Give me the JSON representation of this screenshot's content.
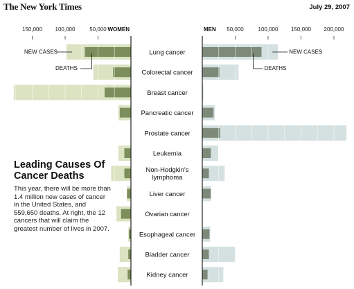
{
  "header": {
    "masthead": "The New York Times",
    "date": "July 29, 2007"
  },
  "text": {
    "headline": "Leading Causes Of Cancer Deaths",
    "blurb": "This year, there will be more than 1.4 million new cases of cancer in the United States, and 559,650 deaths. At right, the 12 cancers that will claim the greatest number of lives in 2007."
  },
  "colors": {
    "women_new_cases": "#dbe3c2",
    "women_deaths": "#7b8e5b",
    "men_new_cases": "#d4e1e0",
    "men_deaths": "#7d8a7a",
    "divider": "#222222"
  },
  "chart_data": {
    "type": "bar",
    "orientation": "horizontal",
    "layout": "back-to-back",
    "left_label": "WOMEN",
    "right_label": "MEN",
    "women_ticks": [
      "150,000",
      "100,000",
      "50,000"
    ],
    "men_ticks": [
      "50,000",
      "100,000",
      "150,000",
      "200,000"
    ],
    "xlim": [
      0,
      220000
    ],
    "annotations": {
      "women_new_cases": "NEW CASES",
      "women_deaths": "DEATHS",
      "men_new_cases": "NEW CASES",
      "men_deaths": "DEATHS"
    },
    "categories": [
      "Lung cancer",
      "Colorectal cancer",
      "Breast cancer",
      "Pancreatic cancer",
      "Prostate cancer",
      "Leukemia",
      "Non-Hodgkin's lymphoma",
      "Liver cancer",
      "Ovarian cancer",
      "Esophageal cancer",
      "Bladder cancer",
      "Kidney cancer"
    ],
    "series": [
      {
        "name": "New cases, women",
        "values": [
          98000,
          57000,
          178000,
          19000,
          0,
          19000,
          30000,
          6000,
          22000,
          4000,
          17000,
          20000
        ]
      },
      {
        "name": "Deaths, women",
        "values": [
          70000,
          27000,
          40000,
          17000,
          0,
          10000,
          10000,
          6000,
          15000,
          3000,
          4000,
          5000
        ]
      },
      {
        "name": "New cases, men",
        "values": [
          115000,
          55000,
          2000,
          19000,
          219000,
          24000,
          34000,
          13000,
          0,
          12000,
          50000,
          32000
        ]
      },
      {
        "name": "Deaths, men",
        "values": [
          90000,
          26000,
          500,
          17000,
          27000,
          13000,
          10000,
          13000,
          0,
          11000,
          10000,
          8000
        ]
      }
    ]
  }
}
